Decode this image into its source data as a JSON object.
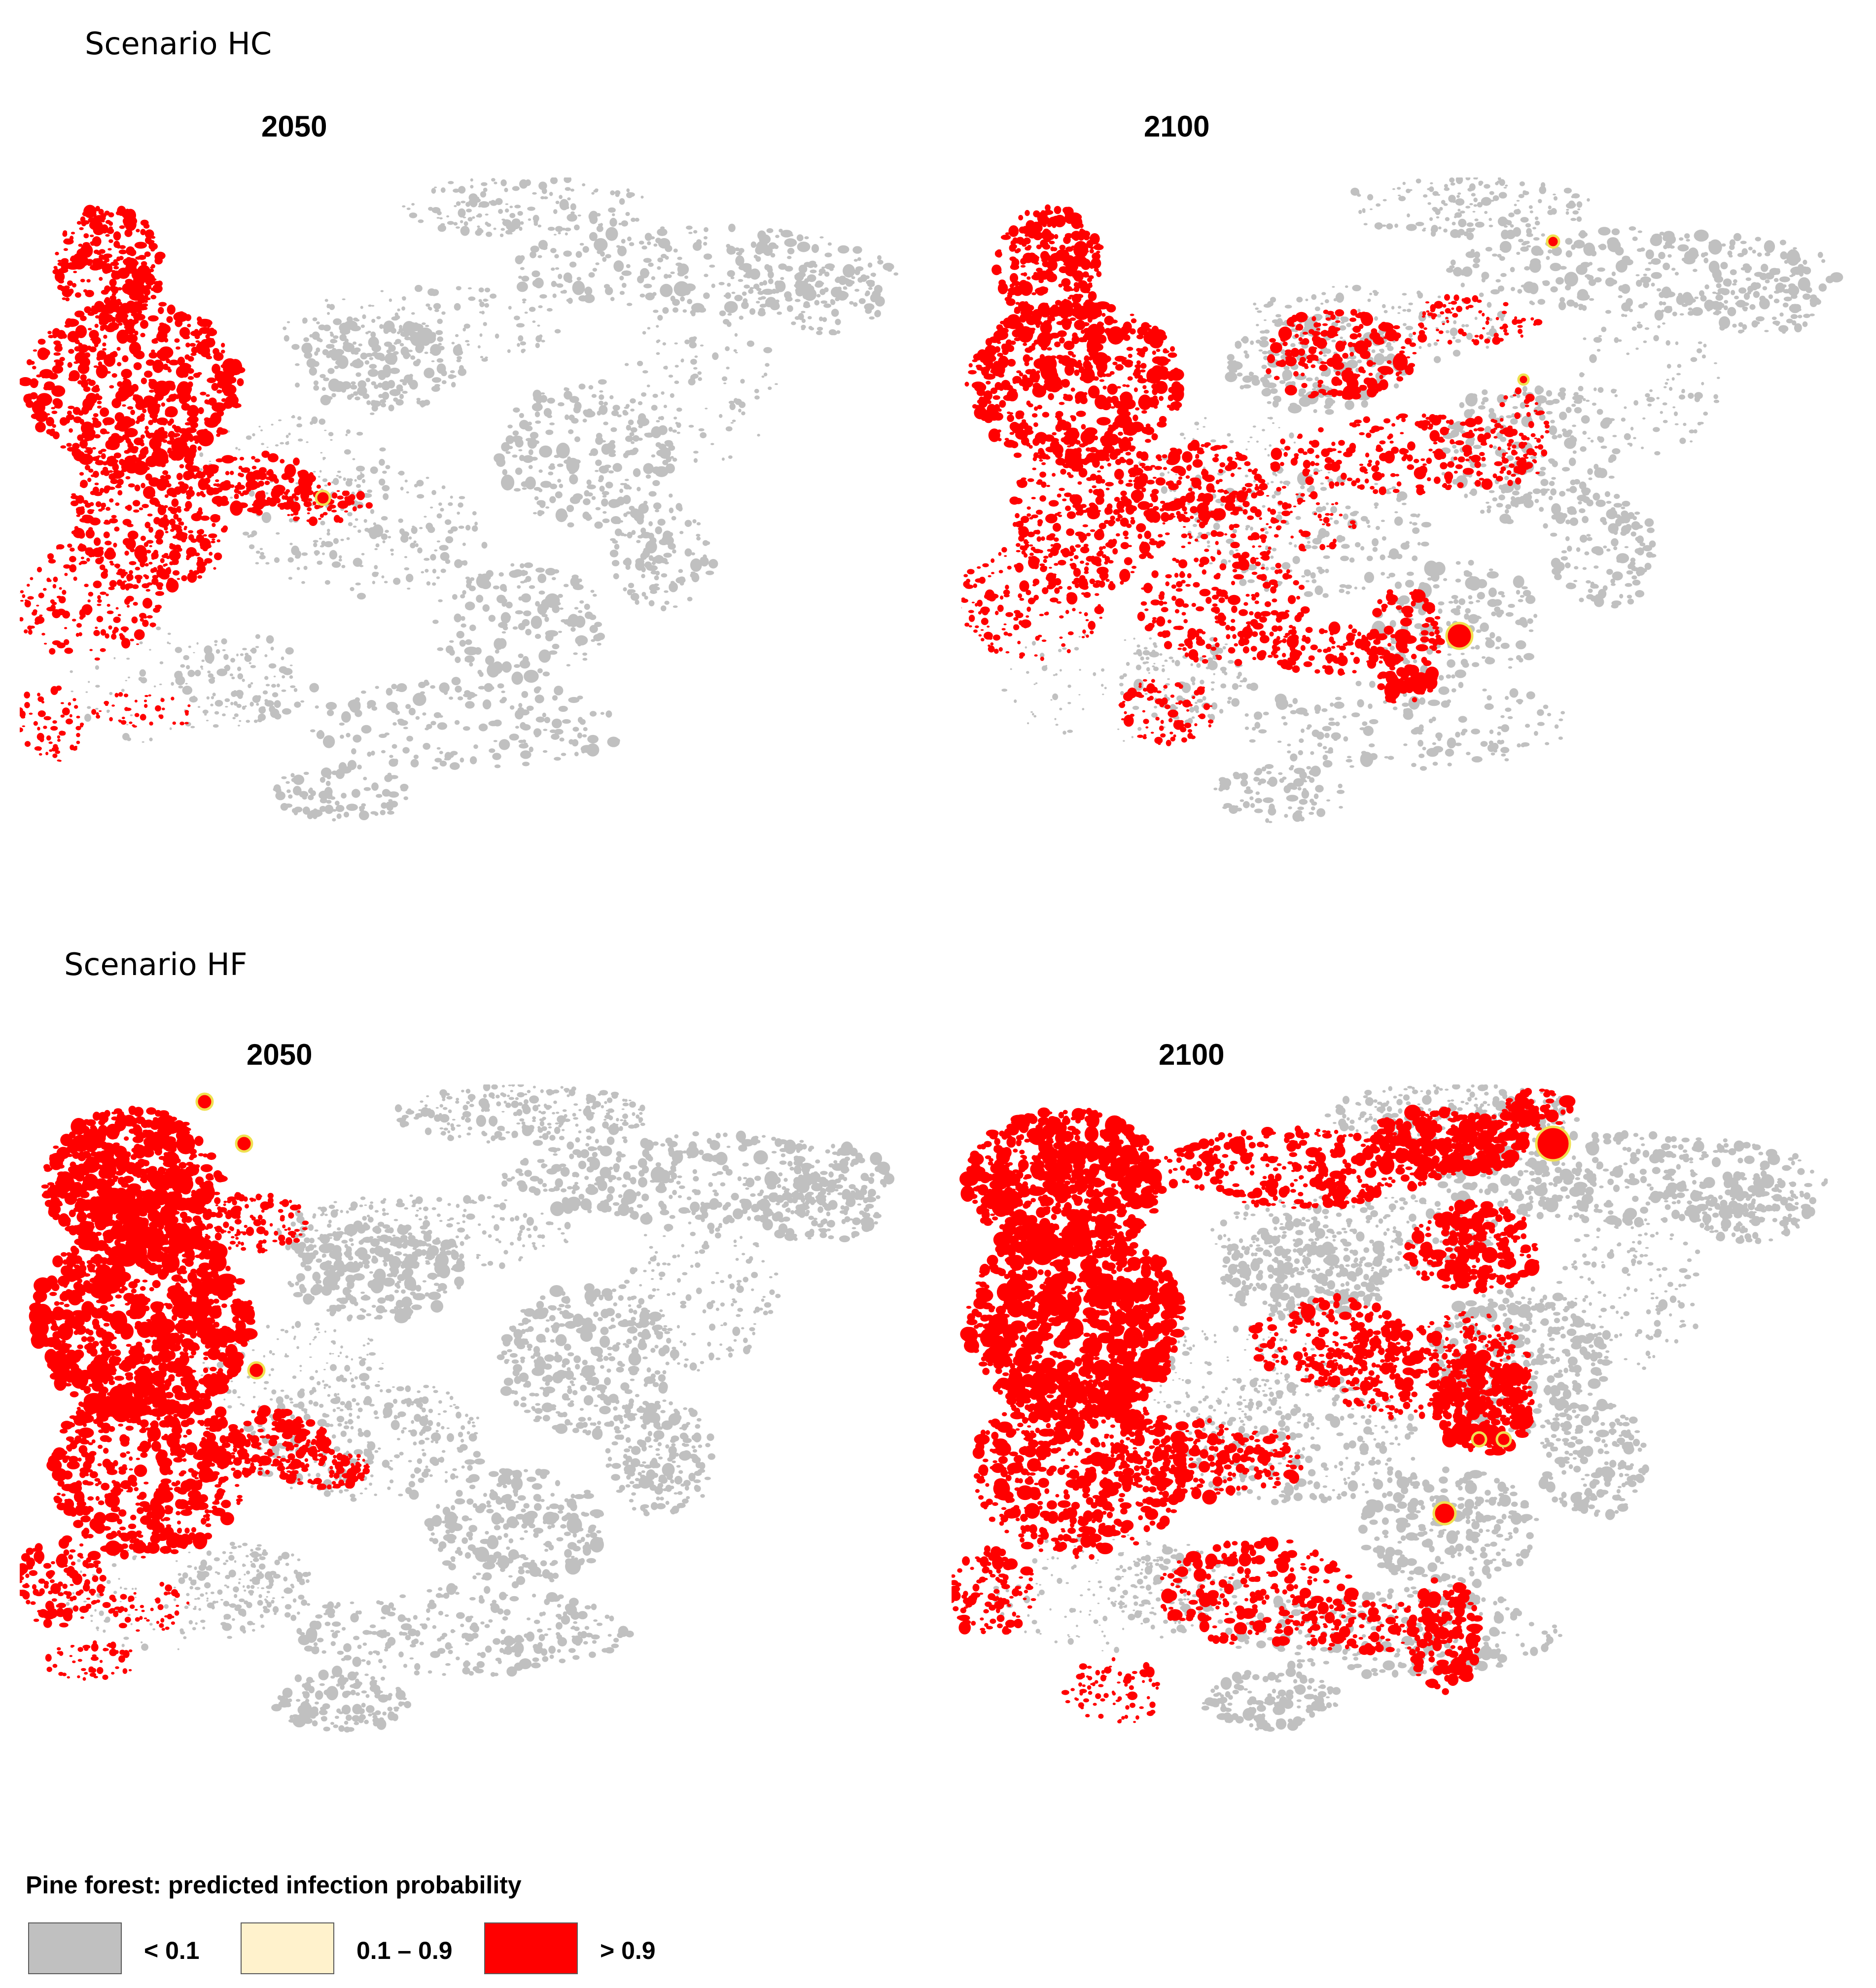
{
  "colors": {
    "low": "#c0c0c0",
    "mid": "#fff2cc",
    "high": "#ff0000",
    "mid_ring": "#f0e050"
  },
  "scenarios": [
    {
      "title": "Scenario HC",
      "panels": [
        {
          "year": "2050",
          "infection_extent": "west-only"
        },
        {
          "year": "2100",
          "infection_extent": "west-and-central"
        }
      ]
    },
    {
      "title": "Scenario HF",
      "panels": [
        {
          "year": "2050",
          "infection_extent": "west-dense"
        },
        {
          "year": "2100",
          "infection_extent": "widespread"
        }
      ]
    }
  ],
  "legend": {
    "title": "Pine forest: predicted infection probability",
    "items": [
      {
        "label": "< 0.1",
        "color": "#c0c0c0"
      },
      {
        "label": "0.1 – 0.9",
        "color": "#fff2cc"
      },
      {
        "label": "> 0.9",
        "color": "#ff0000"
      }
    ]
  }
}
